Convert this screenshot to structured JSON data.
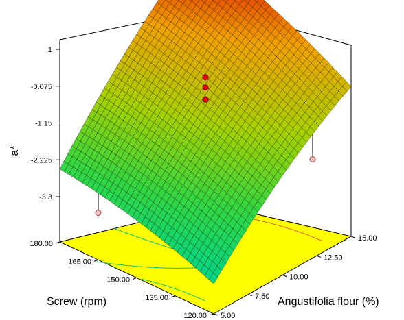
{
  "chart_data": {
    "type": "surface",
    "title": "",
    "zlabel": "a*",
    "xlabel": "Angustifolia flour (%)",
    "ylabel": "Screw (rpm)",
    "x_ticks": [
      "5.00",
      "7.50",
      "10.00",
      "12.50",
      "15.00"
    ],
    "y_ticks": [
      "120.00",
      "135.00",
      "150.00",
      "165.00",
      "180.00"
    ],
    "z_ticks": [
      "-3.3",
      "-2.225",
      "-1.15",
      "-0.075",
      "1"
    ],
    "xlim": [
      5,
      15
    ],
    "ylim": [
      120,
      180
    ],
    "zlim": [
      -4.375,
      2.075
    ],
    "surface_corners": {
      "x5_y120": -3.5,
      "x5_y180": -2.25,
      "x15_y180": 2.05,
      "x15_y120": -0.0
    },
    "design_points": [
      {
        "x": 10,
        "y": 150,
        "z": 0.35
      },
      {
        "x": 10,
        "y": 150,
        "z": 0.05
      },
      {
        "x": 10,
        "y": 150,
        "z": -0.3
      },
      {
        "x": 5,
        "y": 165,
        "z": -3.0
      },
      {
        "x": 15,
        "y": 135,
        "z": -2.65
      }
    ],
    "colormap": [
      "#00d58a",
      "#33d640",
      "#a8d000",
      "#f0a000",
      "#d80000"
    ],
    "base_color": "#ffff00"
  }
}
